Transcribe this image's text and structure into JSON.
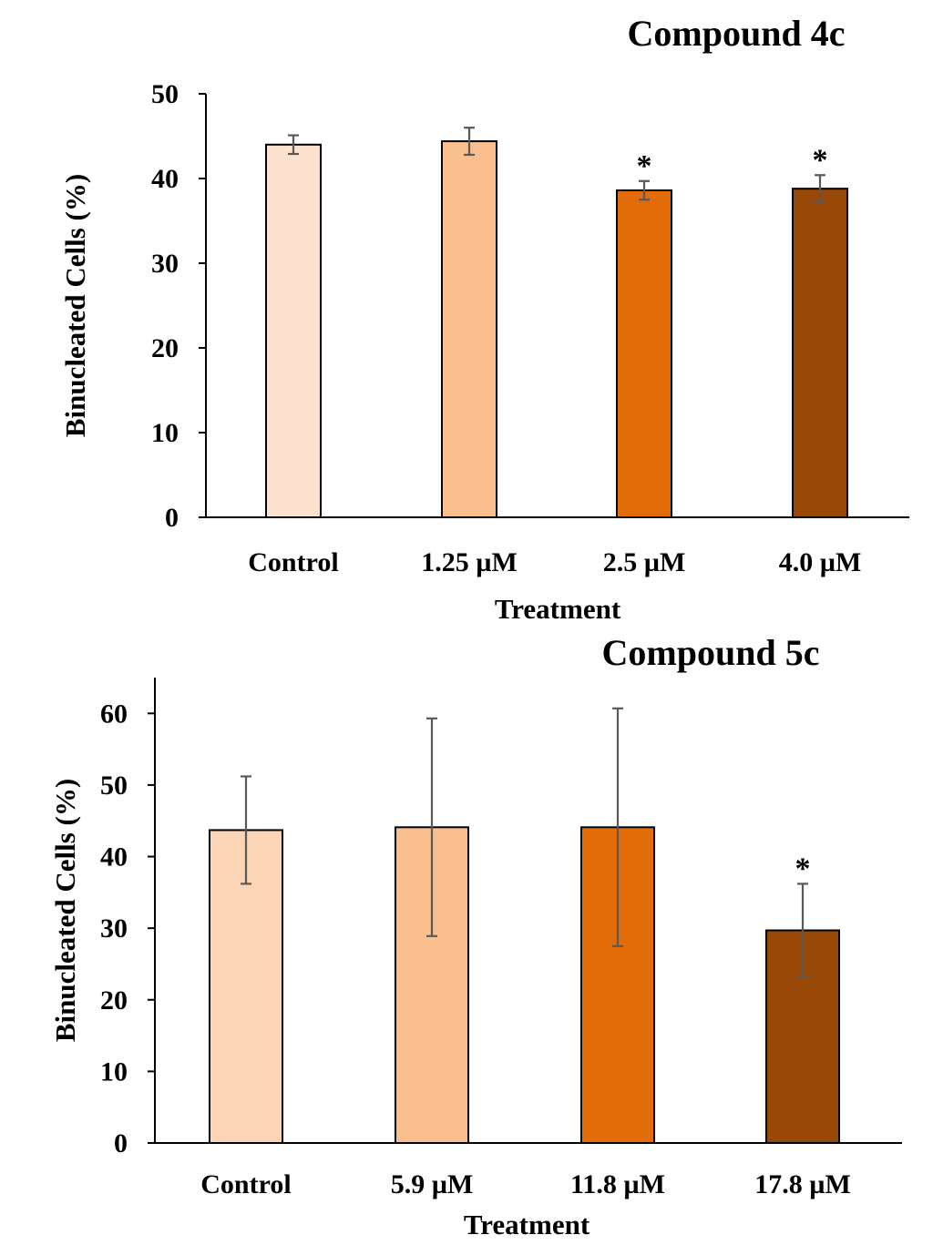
{
  "chart_data": [
    {
      "type": "bar",
      "title": "Compound 4c",
      "xlabel": "Treatment",
      "ylabel": "Binucleated Cells (%)",
      "ylim": [
        0,
        50
      ],
      "yticks": [
        0,
        10,
        20,
        30,
        40,
        50
      ],
      "categories": [
        "Control",
        "1.25 µM",
        "2.5 µM",
        "4.0 µM"
      ],
      "values": [
        44.0,
        44.4,
        38.6,
        38.8
      ],
      "errors": [
        1.1,
        1.6,
        1.1,
        1.6
      ],
      "significance": [
        "",
        "",
        "*",
        "*"
      ],
      "colors": [
        "#fde2d0",
        "#f9bf8f",
        "#e36c0a",
        "#984807"
      ],
      "grid": false
    },
    {
      "type": "bar",
      "title": "Compound 5c",
      "xlabel": "Treatment",
      "ylabel": "Binucleated Cells (%)",
      "ylim": [
        0,
        65
      ],
      "yticks": [
        0,
        10,
        20,
        30,
        40,
        50,
        60
      ],
      "categories": [
        "Control",
        "5.9 µM",
        "11.8 µM",
        "17.8 µM"
      ],
      "values": [
        43.7,
        44.1,
        44.1,
        29.7
      ],
      "errors": [
        7.5,
        15.2,
        16.6,
        6.5
      ],
      "significance": [
        "",
        "",
        "",
        "*"
      ],
      "colors": [
        "#fbd5b5",
        "#f9bf8f",
        "#e36c0a",
        "#984807"
      ],
      "grid": false
    }
  ]
}
